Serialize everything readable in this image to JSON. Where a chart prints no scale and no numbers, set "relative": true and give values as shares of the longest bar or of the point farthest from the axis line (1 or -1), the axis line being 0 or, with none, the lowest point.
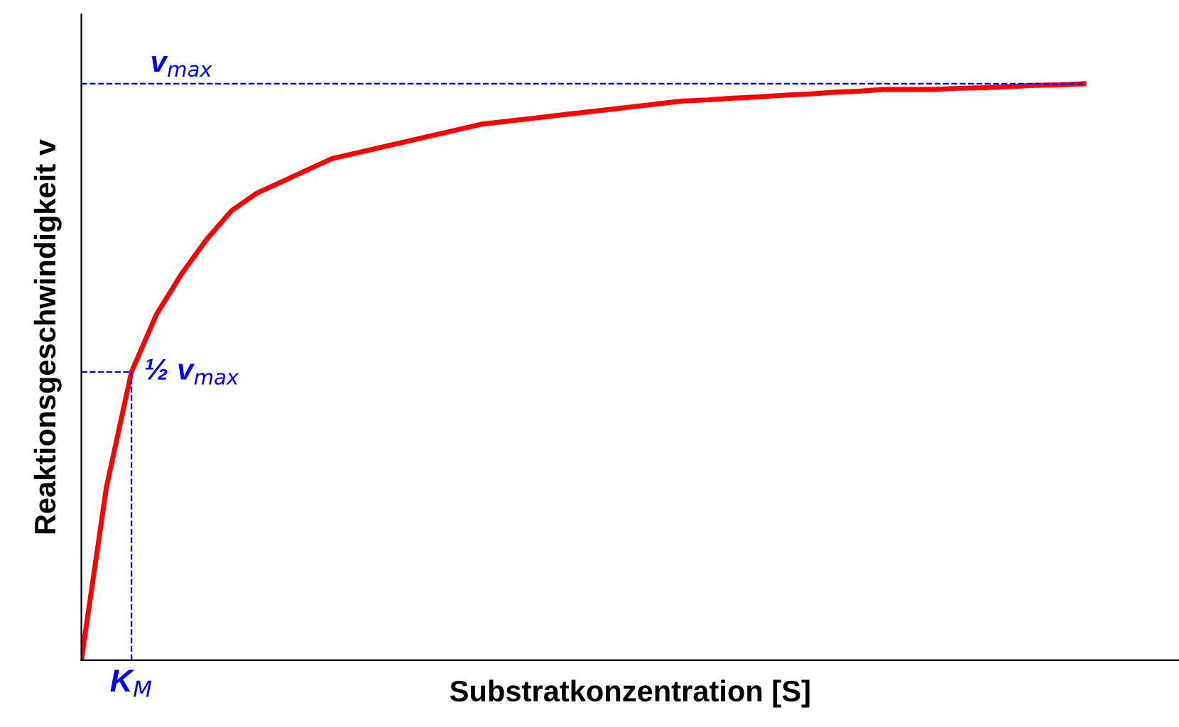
{
  "chart_data": {
    "type": "line",
    "relative": true,
    "xlabel": "Substratkonzentration [S]",
    "ylabel": "Reaktionsgeschwindigkeit v",
    "categories": [
      null,
      null,
      null,
      null,
      null,
      null,
      null,
      null,
      null,
      null,
      null,
      null,
      null,
      null,
      null,
      null,
      null,
      null,
      null,
      null,
      null,
      null,
      null,
      null,
      null,
      null,
      null,
      null,
      null,
      null,
      null,
      null,
      null,
      null,
      null,
      null,
      null,
      null,
      null,
      null,
      null
    ],
    "series": [
      {
        "color": "#ff0000",
        "values": [
          0,
          0.3,
          0.5,
          0.6,
          0.67,
          0.73,
          0.78,
          0.81,
          0.83,
          0.85,
          0.87,
          0.88,
          0.89,
          0.9,
          0.91,
          0.92,
          0.93,
          0.935,
          0.94,
          0.945,
          0.95,
          0.955,
          0.96,
          0.965,
          0.97,
          0.972,
          0.975,
          0.977,
          0.98,
          0.982,
          0.985,
          0.987,
          0.99,
          0.99,
          0.99,
          0.992,
          0.993,
          0.995,
          0.997,
          0.998,
          1
        ]
      }
    ],
    "ref_lines": [
      {
        "axis": "y",
        "value": 1,
        "label": "v$_{max}$",
        "color": "#0000ff",
        "line_style": "dashed"
      },
      {
        "axis": "y",
        "value": 0.5,
        "label": "½ v$_{max}$",
        "color": "#0000ff",
        "line_style": "dashed"
      }
    ],
    "annotations": [
      "K$_{M}$"
    ],
    "marker": "none",
    "line_style": "solid"
  }
}
